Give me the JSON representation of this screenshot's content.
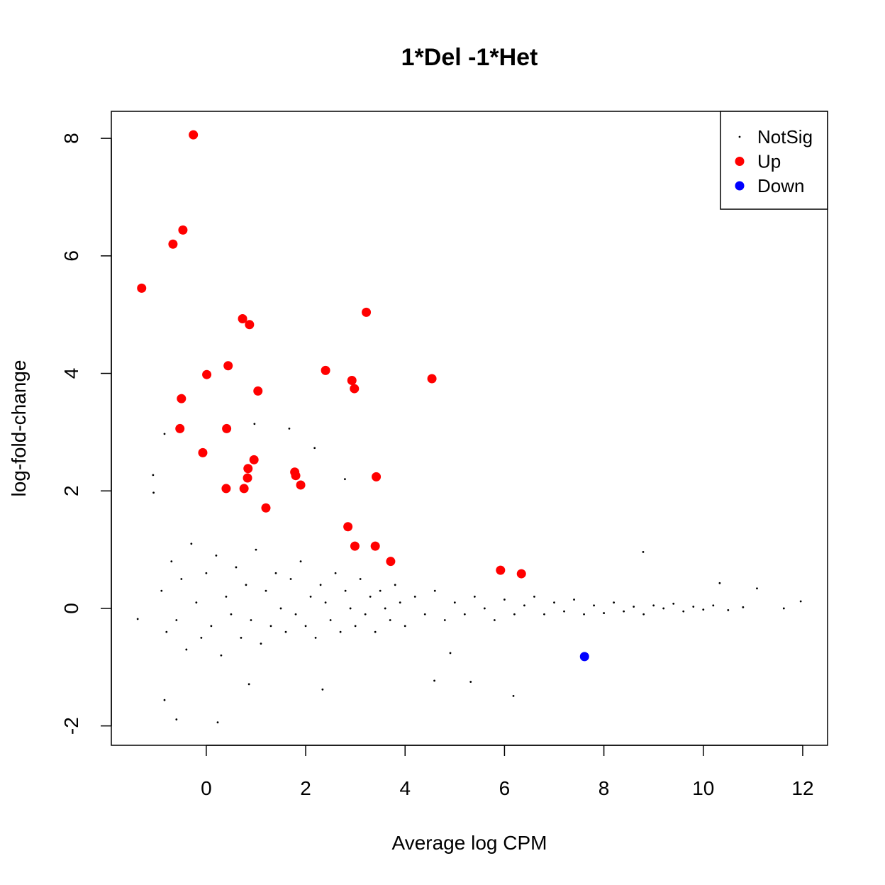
{
  "chart_data": {
    "type": "scatter",
    "title": "1*Del -1*Het",
    "x_label": "Average log CPM",
    "y_label": "log-fold-change",
    "xlim": [
      -1.91,
      12.5
    ],
    "ylim": [
      -2.33,
      8.46
    ],
    "xticks": [
      0,
      2,
      4,
      6,
      8,
      10,
      12
    ],
    "yticks": [
      -2,
      0,
      2,
      4,
      6,
      8
    ],
    "legend": "topright",
    "series": [
      {
        "name": "NotSig",
        "color": "#000000",
        "marker": "small",
        "x": [
          -0.84,
          0.97,
          1.67,
          2.18,
          -1.07,
          -1.06,
          2.79,
          8.79,
          11.96,
          11.08,
          10.33,
          -0.6,
          0.23,
          6.18,
          5.32,
          2.34,
          -1.38,
          0.86,
          -0.84,
          4.91,
          4.59,
          11.62,
          -0.9,
          -0.8,
          -0.7,
          -0.6,
          -0.5,
          -0.4,
          -0.3,
          -0.2,
          -0.1,
          0.0,
          0.1,
          0.2,
          0.3,
          0.4,
          0.5,
          0.6,
          0.7,
          0.8,
          0.9,
          1.0,
          1.1,
          1.2,
          1.3,
          1.4,
          1.5,
          1.6,
          1.7,
          1.8,
          1.9,
          2.0,
          2.1,
          2.2,
          2.3,
          2.4,
          2.5,
          2.6,
          2.7,
          2.8,
          2.9,
          3.0,
          3.1,
          3.2,
          3.3,
          3.4,
          3.5,
          3.6,
          3.7,
          3.8,
          3.9,
          4.0,
          4.2,
          4.4,
          4.6,
          4.8,
          5.0,
          5.2,
          5.4,
          5.6,
          5.8,
          6.0,
          6.2,
          6.4,
          6.6,
          6.8,
          7.0,
          7.2,
          7.4,
          7.6,
          7.8,
          8.0,
          8.2,
          8.4,
          8.6,
          8.8,
          9.0,
          9.2,
          9.4,
          9.6,
          9.8,
          10.0,
          10.2,
          10.5,
          10.8
        ],
        "y": [
          2.97,
          3.14,
          3.06,
          2.73,
          2.27,
          1.97,
          2.2,
          0.96,
          0.12,
          0.34,
          0.43,
          -1.89,
          -1.94,
          -1.49,
          -1.25,
          -1.38,
          -0.18,
          -1.29,
          -1.56,
          -0.76,
          -1.23,
          0.0,
          0.3,
          -0.4,
          0.8,
          -0.2,
          0.5,
          -0.7,
          1.1,
          0.1,
          -0.5,
          0.6,
          -0.3,
          0.9,
          -0.8,
          0.2,
          -0.1,
          0.7,
          -0.5,
          0.4,
          -0.2,
          1.0,
          -0.6,
          0.3,
          -0.3,
          0.6,
          0.0,
          -0.4,
          0.5,
          -0.1,
          0.8,
          -0.3,
          0.2,
          -0.5,
          0.4,
          0.1,
          -0.2,
          0.6,
          -0.4,
          0.3,
          0.0,
          -0.3,
          0.5,
          -0.1,
          0.2,
          -0.4,
          0.3,
          0.0,
          -0.2,
          0.4,
          0.1,
          -0.3,
          0.2,
          -0.1,
          0.3,
          -0.2,
          0.1,
          -0.1,
          0.2,
          0.0,
          -0.2,
          0.15,
          -0.1,
          0.05,
          0.2,
          -0.1,
          0.1,
          -0.05,
          0.15,
          -0.1,
          0.05,
          -0.08,
          0.1,
          -0.05,
          0.03,
          -0.1,
          0.05,
          0.0,
          0.08,
          -0.05,
          0.03,
          -0.02,
          0.05,
          -0.03,
          0.02
        ]
      },
      {
        "name": "Up",
        "color": "#ff0000",
        "marker": "large",
        "x": [
          -0.26,
          -0.47,
          -0.67,
          -1.3,
          0.73,
          0.87,
          3.22,
          0.44,
          0.01,
          2.4,
          2.93,
          2.98,
          4.54,
          1.04,
          -0.5,
          -0.53,
          0.41,
          -0.07,
          0.96,
          0.84,
          0.83,
          1.78,
          1.8,
          1.9,
          3.42,
          0.4,
          0.76,
          1.2,
          2.85,
          2.99,
          3.4,
          3.71,
          5.92,
          6.34
        ],
        "y": [
          8.06,
          6.44,
          6.2,
          5.45,
          4.93,
          4.83,
          5.04,
          4.13,
          3.98,
          4.05,
          3.88,
          3.74,
          3.91,
          3.7,
          3.57,
          3.06,
          3.06,
          2.65,
          2.53,
          2.38,
          2.22,
          2.32,
          2.26,
          2.1,
          2.24,
          2.04,
          2.04,
          1.71,
          1.39,
          1.06,
          1.06,
          0.8,
          0.65,
          0.59
        ]
      },
      {
        "name": "Down",
        "color": "#0000ff",
        "marker": "large",
        "x": [
          7.61
        ],
        "y": [
          -0.82
        ]
      }
    ]
  }
}
